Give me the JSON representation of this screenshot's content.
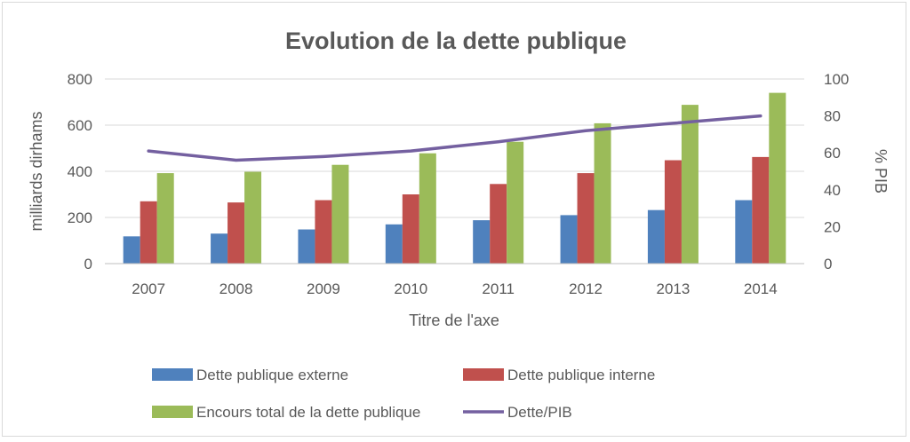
{
  "chart_data": {
    "type": "bar",
    "title": "Evolution de la dette publique",
    "xlabel": "Titre de l'axe",
    "ylabel": "milliards dirhams",
    "y2label": "% PIB",
    "categories": [
      "2007",
      "2008",
      "2009",
      "2010",
      "2011",
      "2012",
      "2013",
      "2014"
    ],
    "ylim": [
      0,
      800
    ],
    "yticks": [
      0,
      200,
      400,
      600,
      800
    ],
    "y2lim": [
      0,
      100
    ],
    "y2ticks": [
      0,
      20,
      40,
      60,
      80,
      100
    ],
    "grid": true,
    "legend_position": "bottom",
    "series": [
      {
        "name": "Dette publique externe",
        "type": "bar",
        "axis": "left",
        "color": "#4f81bd",
        "values": [
          118,
          130,
          148,
          170,
          188,
          210,
          232,
          275
        ]
      },
      {
        "name": "Dette publique interne",
        "type": "bar",
        "axis": "left",
        "color": "#c0504d",
        "values": [
          270,
          265,
          275,
          300,
          345,
          392,
          448,
          462
        ]
      },
      {
        "name": "Encours total de la dette publique",
        "type": "bar",
        "axis": "left",
        "color": "#9bbb59",
        "values": [
          392,
          398,
          428,
          478,
          528,
          608,
          688,
          740
        ]
      },
      {
        "name": "Dette/PIB",
        "type": "line",
        "axis": "right",
        "color": "#7460a0",
        "values": [
          61,
          56,
          58,
          61,
          66,
          72,
          76,
          80
        ]
      }
    ]
  }
}
